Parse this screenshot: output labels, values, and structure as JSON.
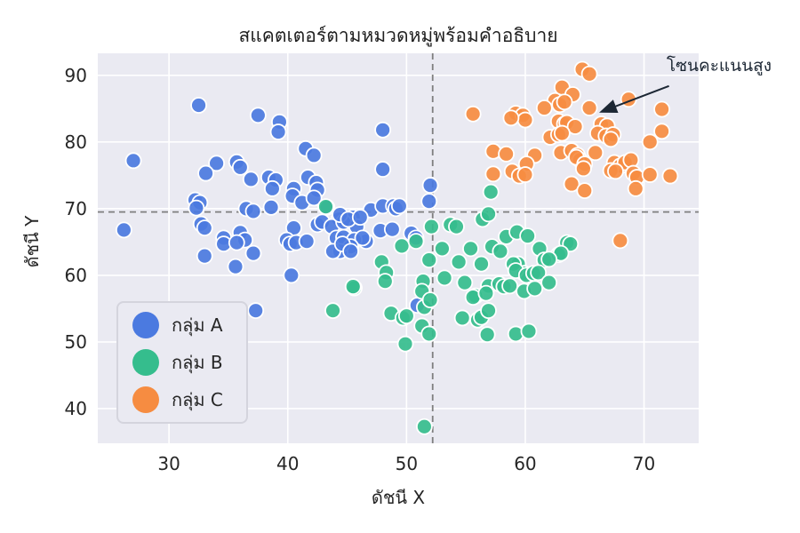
{
  "chart_data": {
    "type": "scatter",
    "title": "สแคตเตอร์ตามหมวดหมู่พร้อมคำอธิบาย",
    "xlabel": "ดัชนี X",
    "ylabel": "ดัชนี Y",
    "xlim": [
      24,
      74.6
    ],
    "ylim": [
      34.8,
      93.3
    ],
    "xticks": [
      30,
      40,
      50,
      60,
      70
    ],
    "yticks": [
      40,
      50,
      60,
      70,
      80,
      90
    ],
    "grid": true,
    "plot_bg": "#eaeaf2",
    "grid_color": "#ffffff",
    "legend_position": "lower left",
    "marker_radius": 8.5,
    "series": [
      {
        "name": "กลุ่ม A",
        "color": "#4b7ae0",
        "points": [
          [
            32.5,
            85.5
          ],
          [
            37.5,
            84
          ],
          [
            39.3,
            83
          ],
          [
            39.2,
            81.5
          ],
          [
            48,
            81.8
          ],
          [
            27,
            77.2
          ],
          [
            41.5,
            79
          ],
          [
            42.2,
            78
          ],
          [
            34,
            76.8
          ],
          [
            35.7,
            77
          ],
          [
            36,
            76.2
          ],
          [
            33.1,
            75.3
          ],
          [
            36.9,
            74.4
          ],
          [
            38.4,
            74.7
          ],
          [
            39,
            74.3
          ],
          [
            38.7,
            73
          ],
          [
            41.7,
            74.7
          ],
          [
            42.4,
            73.9
          ],
          [
            42.5,
            72.8
          ],
          [
            40.5,
            73
          ],
          [
            40.4,
            71.9
          ],
          [
            41.2,
            70.9
          ],
          [
            42.2,
            71.6
          ],
          [
            32.2,
            71.3
          ],
          [
            32.6,
            70.9
          ],
          [
            32.3,
            70.1
          ],
          [
            38.6,
            70.2
          ],
          [
            36.5,
            70
          ],
          [
            37.1,
            69.6
          ],
          [
            43.3,
            70.2
          ],
          [
            47,
            69.8
          ],
          [
            45.5,
            68.7
          ],
          [
            44.3,
            68.4
          ],
          [
            48,
            70.4
          ],
          [
            48.9,
            70.4
          ],
          [
            26.2,
            66.8
          ],
          [
            32.7,
            67.7
          ],
          [
            33,
            67.1
          ],
          [
            34.6,
            65.6
          ],
          [
            36,
            66.4
          ],
          [
            36.4,
            65.3
          ],
          [
            40.5,
            67.1
          ],
          [
            39.9,
            65.3
          ],
          [
            42.5,
            67.6
          ],
          [
            42.9,
            68
          ],
          [
            43.7,
            67.3
          ],
          [
            44.1,
            65.6
          ],
          [
            44.7,
            68
          ],
          [
            45.8,
            67.3
          ],
          [
            46.6,
            65.1
          ],
          [
            47.8,
            66.7
          ],
          [
            48,
            75.9
          ],
          [
            52,
            73.5
          ],
          [
            51.9,
            71.1
          ],
          [
            49.1,
            70
          ],
          [
            49.4,
            70.4
          ],
          [
            44.4,
            69.1
          ],
          [
            45.1,
            68.4
          ],
          [
            46.1,
            68.7
          ],
          [
            44.7,
            65.7
          ],
          [
            45.6,
            65.3
          ],
          [
            46.3,
            65.6
          ],
          [
            45.3,
            64.3
          ],
          [
            44.4,
            63.6
          ],
          [
            48.8,
            66.9
          ],
          [
            50.4,
            66.3
          ],
          [
            50.8,
            65.6
          ],
          [
            50.9,
            55.5
          ],
          [
            33,
            62.9
          ],
          [
            34.6,
            64.7
          ],
          [
            35.6,
            61.3
          ],
          [
            35.7,
            64.9
          ],
          [
            37.1,
            63.3
          ],
          [
            40.2,
            64.7
          ],
          [
            40.7,
            64.9
          ],
          [
            41.6,
            65.1
          ],
          [
            40.3,
            60
          ],
          [
            43.8,
            63.6
          ],
          [
            44.6,
            64.7
          ],
          [
            45.3,
            63.6
          ],
          [
            37.3,
            54.7
          ]
        ]
      },
      {
        "name": "กลุ่ม B",
        "color": "#35bd8d",
        "points": [
          [
            43.2,
            70.3
          ],
          [
            52.1,
            67.3
          ],
          [
            53.7,
            67.6
          ],
          [
            54.2,
            67.3
          ],
          [
            56.4,
            68.4
          ],
          [
            56.9,
            69.2
          ],
          [
            57.1,
            72.5
          ],
          [
            49.6,
            64.4
          ],
          [
            50.8,
            65.1
          ],
          [
            51.9,
            62.3
          ],
          [
            53,
            64
          ],
          [
            54.4,
            62
          ],
          [
            55.4,
            64
          ],
          [
            56.3,
            61.7
          ],
          [
            57.2,
            64.3
          ],
          [
            58.4,
            65.8
          ],
          [
            59.3,
            66.5
          ],
          [
            60.2,
            65.9
          ],
          [
            59.4,
            61.7
          ],
          [
            59.9,
            60.3
          ],
          [
            47.9,
            62
          ],
          [
            48.3,
            60.4
          ],
          [
            48.2,
            59.1
          ],
          [
            45.6,
            58.1
          ],
          [
            51.4,
            59.1
          ],
          [
            51.3,
            57.6
          ],
          [
            53.2,
            59.6
          ],
          [
            54.9,
            58.9
          ],
          [
            55.8,
            56.9
          ],
          [
            56.9,
            58.4
          ],
          [
            57.8,
            58.7
          ],
          [
            58.2,
            58.3
          ],
          [
            58.7,
            58.4
          ],
          [
            57.9,
            63.6
          ],
          [
            61.2,
            64
          ],
          [
            63.5,
            64.9
          ],
          [
            63.8,
            64.7
          ],
          [
            62.8,
            63.1
          ],
          [
            63,
            63.3
          ],
          [
            59,
            61.7
          ],
          [
            59.2,
            60.7
          ],
          [
            61.6,
            62.3
          ],
          [
            62,
            62.4
          ],
          [
            60.1,
            60
          ],
          [
            60.7,
            60.3
          ],
          [
            61.1,
            60.4
          ],
          [
            59.9,
            57.6
          ],
          [
            60.8,
            58
          ],
          [
            62,
            58.9
          ],
          [
            59.2,
            51.2
          ],
          [
            60.3,
            51.6
          ],
          [
            51.5,
            55.2
          ],
          [
            52,
            56.3
          ],
          [
            48.7,
            54.3
          ],
          [
            49.7,
            53.6
          ],
          [
            50,
            53.9
          ],
          [
            51.3,
            52.4
          ],
          [
            51.9,
            51.2
          ],
          [
            49.9,
            49.7
          ],
          [
            55.6,
            56.7
          ],
          [
            56.7,
            57.3
          ],
          [
            54.7,
            53.6
          ],
          [
            56,
            53.3
          ],
          [
            56.3,
            53.7
          ],
          [
            56.9,
            54.7
          ],
          [
            56.8,
            51.1
          ],
          [
            51.5,
            37.3
          ],
          [
            45.5,
            58.3
          ],
          [
            43.8,
            54.7
          ]
        ]
      },
      {
        "name": "กลุ่ม C",
        "color": "#f68c41",
        "points": [
          [
            64.8,
            90.9
          ],
          [
            65.4,
            90.2
          ],
          [
            63.1,
            88.2
          ],
          [
            64,
            87.1
          ],
          [
            62.5,
            86.2
          ],
          [
            62.9,
            85.6
          ],
          [
            63.3,
            86
          ],
          [
            61.6,
            85.1
          ],
          [
            65.4,
            85.1
          ],
          [
            68.7,
            86.4
          ],
          [
            71.5,
            84.9
          ],
          [
            55.6,
            84.2
          ],
          [
            59.2,
            84.3
          ],
          [
            59.8,
            84
          ],
          [
            60,
            83.3
          ],
          [
            58.8,
            83.6
          ],
          [
            62.8,
            83.1
          ],
          [
            63.3,
            82.7
          ],
          [
            63.5,
            82.9
          ],
          [
            64.2,
            82.3
          ],
          [
            66.4,
            82.7
          ],
          [
            66.9,
            82.4
          ],
          [
            66.1,
            81.3
          ],
          [
            66.8,
            80.9
          ],
          [
            67.4,
            81.1
          ],
          [
            67.2,
            80.4
          ],
          [
            71.5,
            81.6
          ],
          [
            62.1,
            80.7
          ],
          [
            62.8,
            81.1
          ],
          [
            63.1,
            81.3
          ],
          [
            70.5,
            80
          ],
          [
            57.3,
            78.6
          ],
          [
            58.4,
            78.2
          ],
          [
            60.8,
            78
          ],
          [
            63,
            78.4
          ],
          [
            63.9,
            78.7
          ],
          [
            64.4,
            78
          ],
          [
            64.6,
            77.3
          ],
          [
            64.3,
            77.7
          ],
          [
            65.9,
            78.4
          ],
          [
            60.1,
            76.7
          ],
          [
            65,
            76.7
          ],
          [
            64.9,
            76
          ],
          [
            67.5,
            76.9
          ],
          [
            68,
            76.4
          ],
          [
            68.4,
            76.9
          ],
          [
            68.9,
            77.3
          ],
          [
            57.3,
            75.2
          ],
          [
            58.9,
            75.6
          ],
          [
            59.5,
            74.9
          ],
          [
            60,
            75.1
          ],
          [
            67.2,
            75.7
          ],
          [
            67.6,
            75.6
          ],
          [
            69.1,
            75.3
          ],
          [
            69.4,
            74.7
          ],
          [
            70.5,
            75.1
          ],
          [
            72.2,
            74.9
          ],
          [
            63.9,
            73.7
          ],
          [
            65,
            72.7
          ],
          [
            69.3,
            73
          ],
          [
            68,
            65.2
          ]
        ]
      }
    ],
    "reference_lines": {
      "h_y": 69.5,
      "v_x": 52.2,
      "color": "#7f7f7f",
      "style": "dashed"
    },
    "annotation": {
      "text": "โซนคะแนนสูง",
      "text_x": 71.9,
      "text_y": 91.6,
      "arrow_from": [
        72.1,
        88.4
      ],
      "arrow_to": [
        66.5,
        84.6
      ],
      "arrow_color": "#1c2734"
    }
  }
}
